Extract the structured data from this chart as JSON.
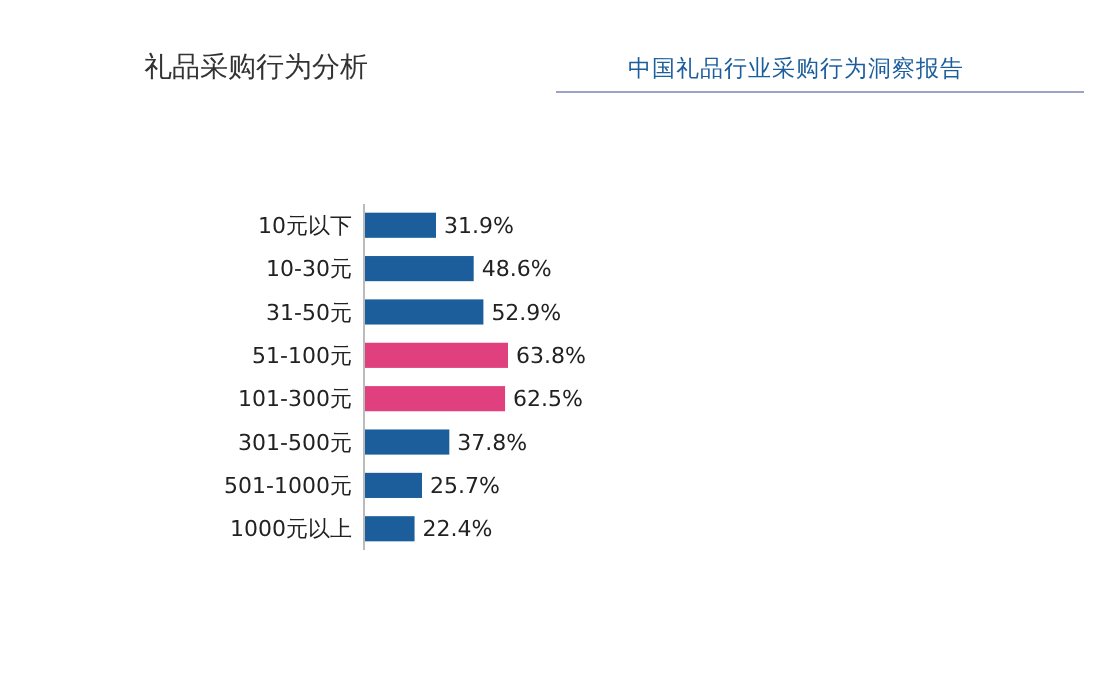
{
  "chart_data": {
    "type": "bar",
    "orientation": "horizontal",
    "title": "礼品采购行为分析",
    "subtitle": "中国礼品行业采购行为洞察报告",
    "categories": [
      "10元以下",
      "10-30元",
      "31-50元",
      "51-100元",
      "101-300元",
      "301-500元",
      "501-1000元",
      "1000元以上"
    ],
    "values": [
      31.9,
      48.6,
      52.9,
      63.8,
      62.5,
      37.8,
      25.7,
      22.4
    ],
    "colors": [
      "#1c5e9c",
      "#1c5e9c",
      "#1c5e9c",
      "#e0407e",
      "#e0407e",
      "#1c5e9c",
      "#1c5e9c",
      "#1c5e9c"
    ],
    "value_labels": [
      "31.9%",
      "48.6%",
      "52.9%",
      "63.8%",
      "62.5%",
      "37.8%",
      "25.7%",
      "22.4%"
    ]
  }
}
